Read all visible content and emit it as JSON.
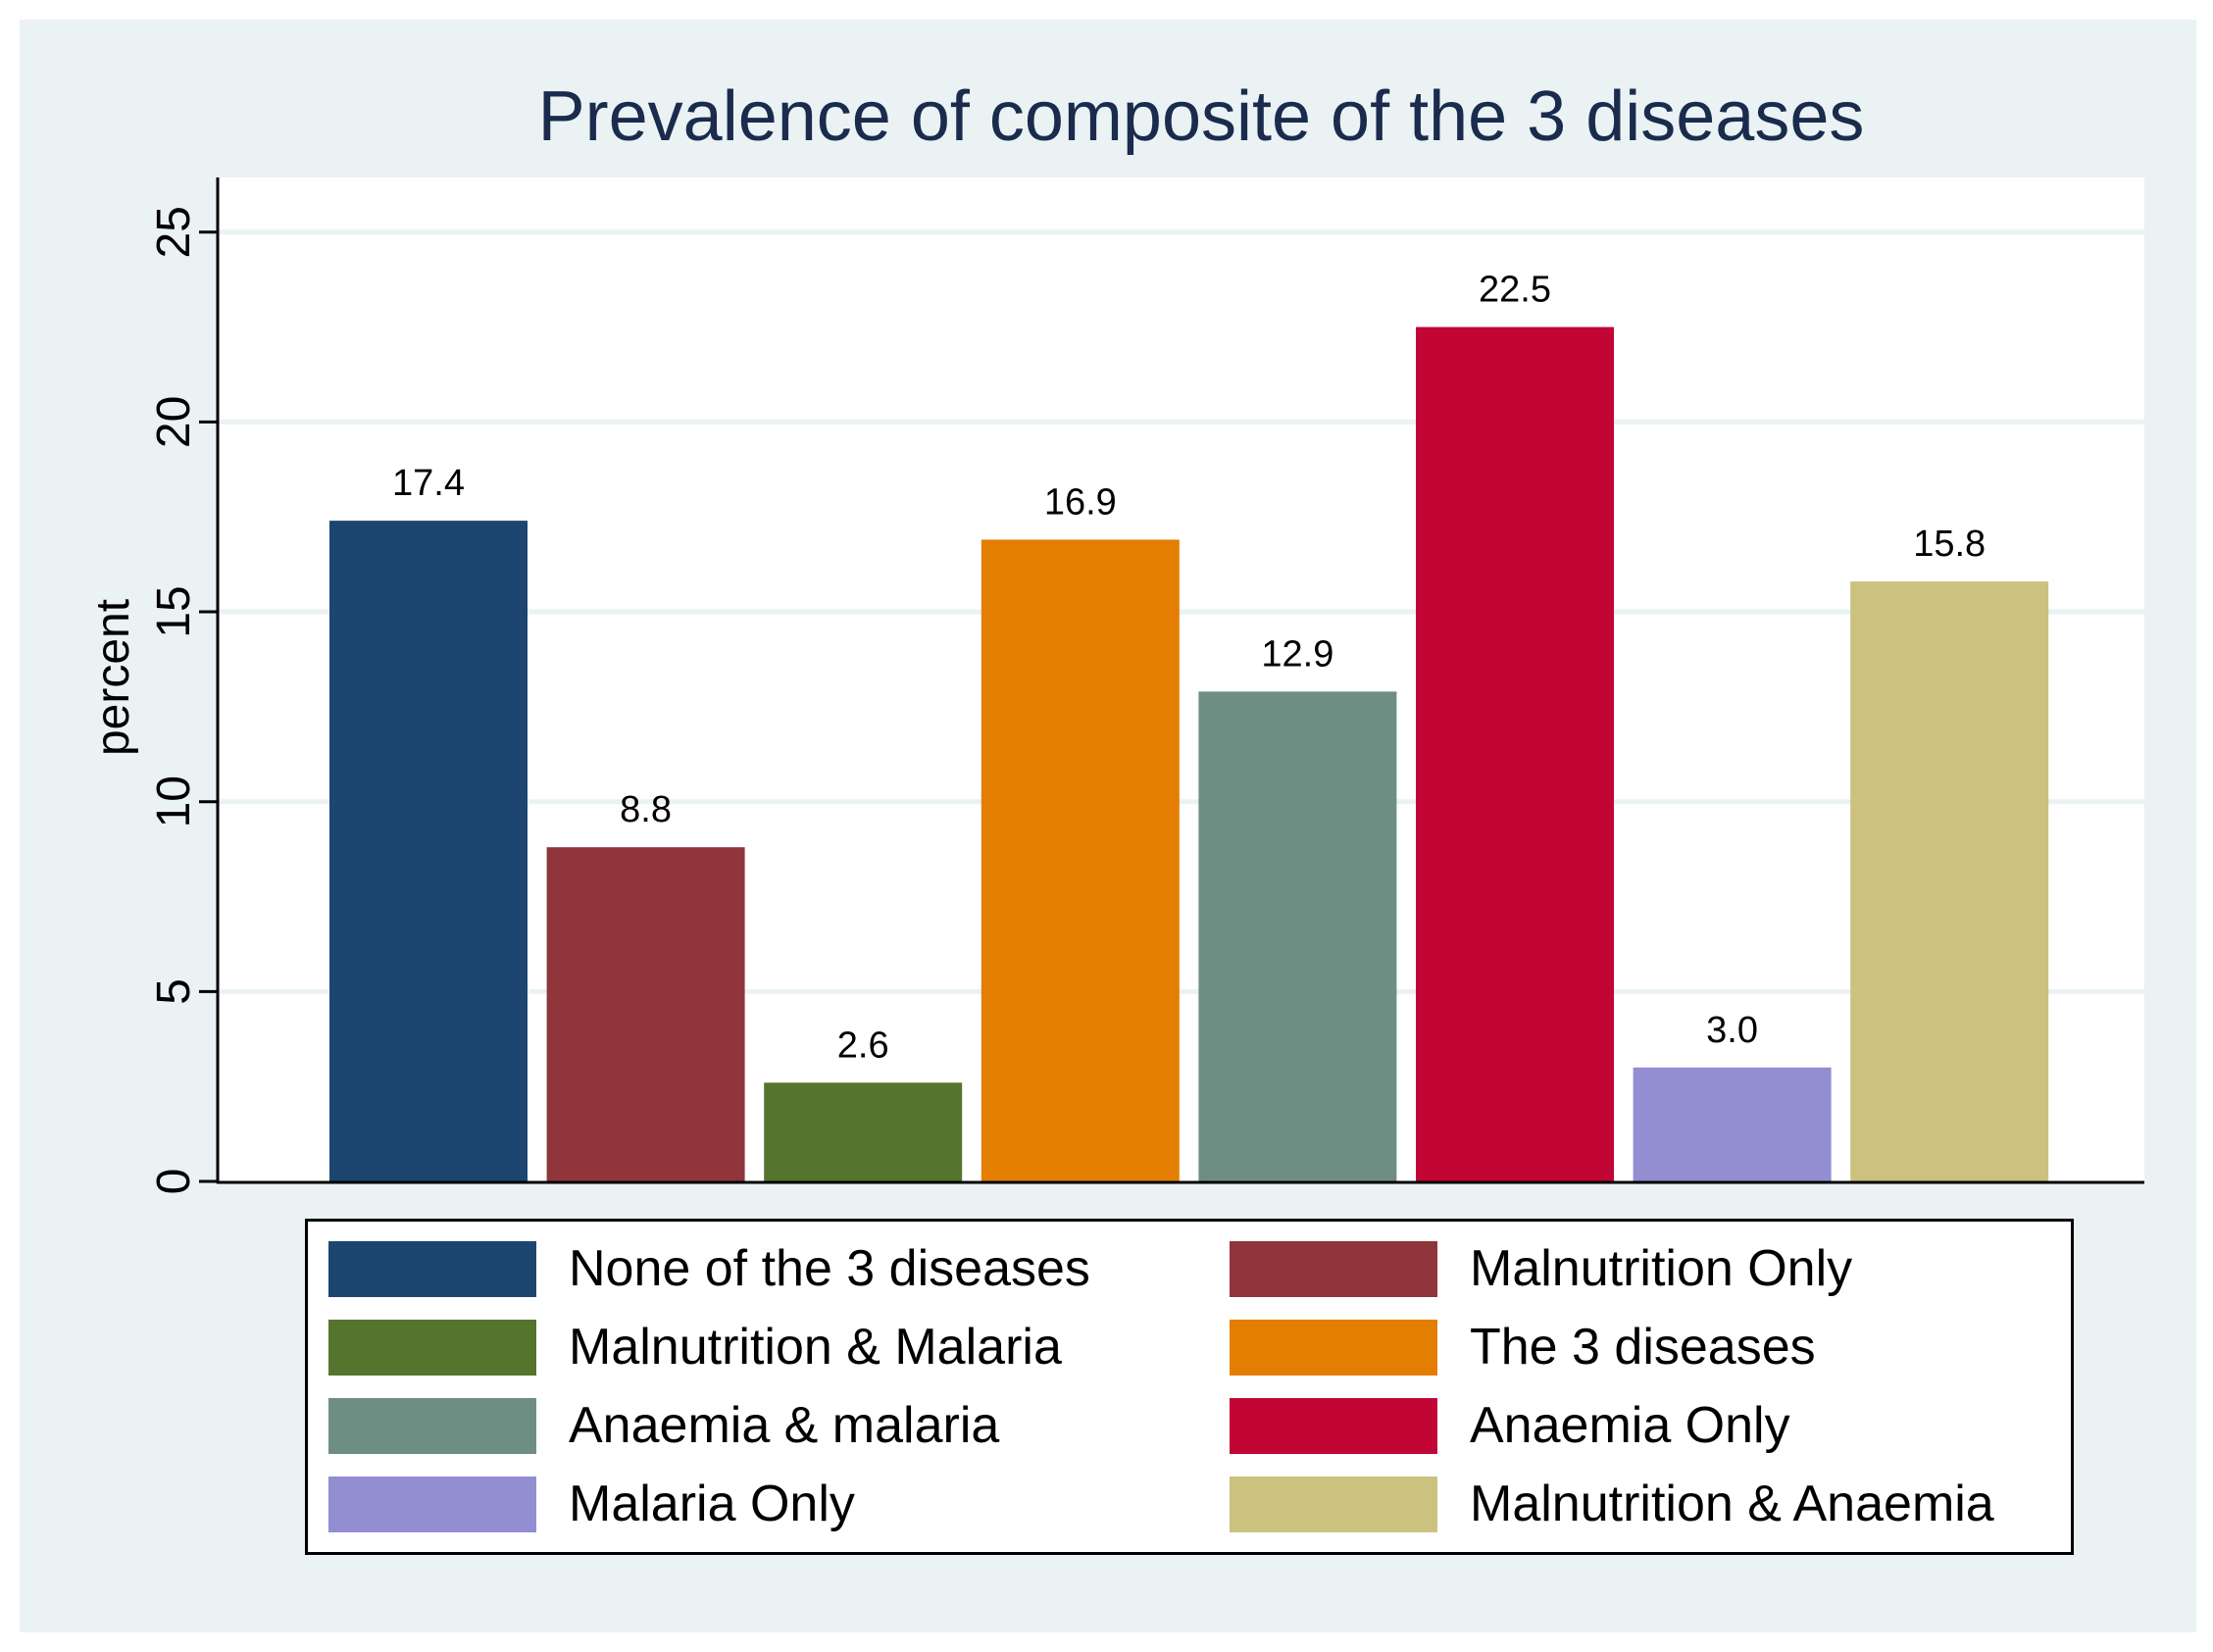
{
  "chart_data": {
    "type": "bar",
    "title": "Prevalence of composite of the 3 diseases",
    "xlabel": "",
    "ylabel": "percent",
    "ylim": [
      0,
      26
    ],
    "yticks": [
      "0",
      "5",
      "10",
      "15",
      "20",
      "25"
    ],
    "grid": true,
    "legend_position": "bottom",
    "series": [
      {
        "name": "None of the 3 diseases",
        "value": 17.4,
        "label": "17.4",
        "color": "#1c4670"
      },
      {
        "name": "Malnutrition Only",
        "value": 8.8,
        "label": "8.8",
        "color": "#90353b"
      },
      {
        "name": "Malnutrition & Malaria",
        "value": 2.6,
        "label": "2.6",
        "color": "#55752f"
      },
      {
        "name": "The 3 diseases",
        "value": 16.9,
        "label": "16.9",
        "color": "#e37e00"
      },
      {
        "name": "Anaemia & malaria",
        "value": 12.9,
        "label": "12.9",
        "color": "#6e8e84"
      },
      {
        "name": "Anaemia Only",
        "value": 22.5,
        "label": "22.5",
        "color": "#c10534"
      },
      {
        "name": "Malaria Only",
        "value": 3.0,
        "label": "3.0",
        "color": "#938dd2"
      },
      {
        "name": "Malnutrition & Anaemia",
        "value": 15.8,
        "label": "15.8",
        "color": "#cac27e"
      }
    ]
  }
}
